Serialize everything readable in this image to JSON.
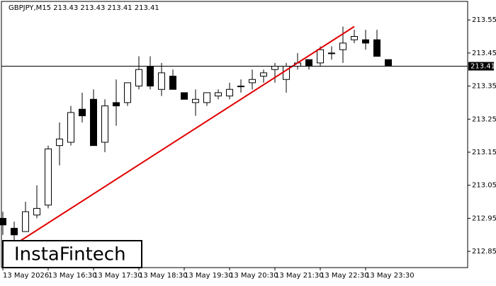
{
  "chart_data": {
    "type": "candlestick",
    "header": "GBPJPY,M15  213.43 213.43 213.41 213.41",
    "logo": "InstaFintech",
    "categories": [
      "13 May 2026",
      null,
      null,
      null,
      "13 May 16:30",
      null,
      null,
      null,
      "13 May 17:30",
      null,
      null,
      null,
      "13 May 18:30",
      null,
      null,
      null,
      "13 May 19:30",
      null,
      null,
      null,
      "13 May 20:30",
      null,
      null,
      null,
      "13 May 21:30",
      null,
      null,
      null,
      "13 May 22:30",
      null,
      null,
      null,
      "13 May 23:30",
      null,
      null
    ],
    "open": [
      212.95,
      212.92,
      212.91,
      212.96,
      212.99,
      213.17,
      213.18,
      213.28,
      213.31,
      213.18,
      213.3,
      213.3,
      213.35,
      213.41,
      213.34,
      213.38,
      213.33,
      213.3,
      213.3,
      213.32,
      213.32,
      213.35,
      213.36,
      213.38,
      213.4,
      213.37,
      213.41,
      213.43,
      213.42,
      213.45,
      213.46,
      213.49,
      213.49,
      213.49,
      213.43
    ],
    "high": [
      212.97,
      212.94,
      213.0,
      213.05,
      213.17,
      213.24,
      213.29,
      213.33,
      213.34,
      213.31,
      213.37,
      213.36,
      213.44,
      213.44,
      213.42,
      213.4,
      213.33,
      213.34,
      213.33,
      213.34,
      213.36,
      213.37,
      213.4,
      213.4,
      213.42,
      213.42,
      213.45,
      213.43,
      213.47,
      213.47,
      213.53,
      213.52,
      213.52,
      213.52,
      213.43
    ],
    "low": [
      212.9,
      212.88,
      212.91,
      212.95,
      212.98,
      213.11,
      213.17,
      213.24,
      213.17,
      213.15,
      213.23,
      213.29,
      213.34,
      213.34,
      213.32,
      213.34,
      213.31,
      213.26,
      213.29,
      213.31,
      213.31,
      213.33,
      213.34,
      213.36,
      213.36,
      213.33,
      213.4,
      213.4,
      213.41,
      213.43,
      213.42,
      213.48,
      213.46,
      213.44,
      213.41
    ],
    "close": [
      212.93,
      212.9,
      212.97,
      212.98,
      213.16,
      213.19,
      213.27,
      213.26,
      213.17,
      213.29,
      213.29,
      213.36,
      213.4,
      213.35,
      213.39,
      213.34,
      213.31,
      213.31,
      213.33,
      213.33,
      213.34,
      213.35,
      213.37,
      213.39,
      213.41,
      213.41,
      213.42,
      213.41,
      213.46,
      213.45,
      213.48,
      213.5,
      213.48,
      213.44,
      213.41
    ],
    "up_color": "#ffffff",
    "down_color": "#000000",
    "ylim": [
      212.801,
      213.606
    ],
    "yticks": [
      212.85,
      212.95,
      213.05,
      213.15,
      213.25,
      213.35,
      213.45,
      213.55
    ],
    "current_price": 213.41,
    "trend_line": {
      "color": "#e00000",
      "from": [
        1,
        212.87
      ],
      "to": [
        31,
        213.53
      ]
    },
    "grid": false
  }
}
